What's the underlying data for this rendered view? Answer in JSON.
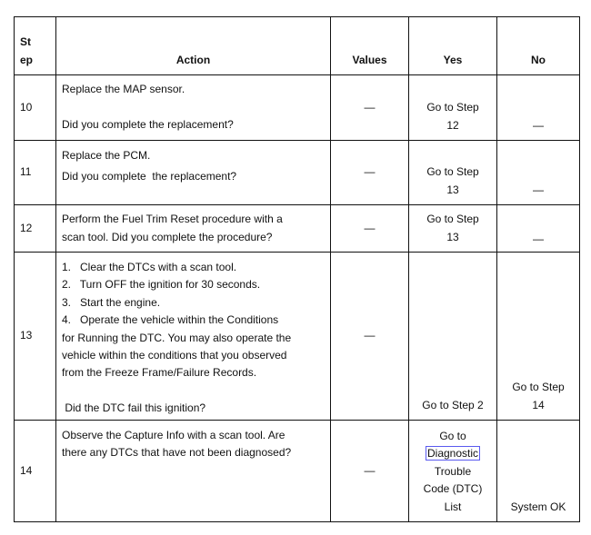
{
  "headers": {
    "step": "St\nep",
    "step_l1": "St",
    "step_l2": "ep",
    "action": "Action",
    "values": "Values",
    "yes": "Yes",
    "no": "No"
  },
  "rows": [
    {
      "step": "10",
      "action": [
        "Replace the MAP sensor.",
        "",
        "Did you complete the replacement?"
      ],
      "values": "—",
      "yes": [
        "Go to Step",
        "12"
      ],
      "no": "—"
    },
    {
      "step": "11",
      "action": [
        "Replace the PCM.",
        "Did you complete  the replacement?"
      ],
      "values": "—",
      "yes": [
        "Go to Step",
        "13"
      ],
      "no": "—"
    },
    {
      "step": "12",
      "action": [
        "Perform the Fuel Trim Reset procedure with a",
        "scan tool. Did you complete the procedure?"
      ],
      "values": "—",
      "yes": [
        "Go to Step",
        "13"
      ],
      "no": "—"
    },
    {
      "step": "13",
      "action": [
        "1.   Clear the DTCs with a scan tool.",
        "2.   Turn OFF the ignition for 30 seconds.",
        "3.   Start the engine.",
        "4.   Operate the vehicle within the Conditions",
        "for Running the DTC. You may also operate the",
        "vehicle within the conditions that you observed",
        "from the Freeze Frame/Failure Records.",
        "",
        " Did the DTC fail this ignition?"
      ],
      "values": "—",
      "yes": [
        "Go to Step 2"
      ],
      "no": [
        "Go to Step",
        "14"
      ]
    },
    {
      "step": "14",
      "action": [
        "Observe the Capture Info with a scan tool. Are",
        "there any DTCs that have not been diagnosed?"
      ],
      "values": "—",
      "yes": [
        "Go to",
        "Diagnostic",
        "Trouble",
        "Code (DTC)",
        "List"
      ],
      "no": "System OK"
    }
  ]
}
